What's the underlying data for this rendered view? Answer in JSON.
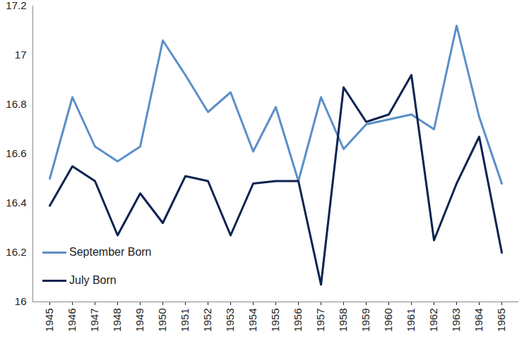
{
  "chart_data": {
    "type": "line",
    "categories": [
      "1945",
      "1946",
      "1947",
      "1948",
      "1949",
      "1950",
      "1951",
      "1952",
      "1953",
      "1954",
      "1955",
      "1956",
      "1957",
      "1958",
      "1959",
      "1960",
      "1961",
      "1962",
      "1963",
      "1964",
      "1965"
    ],
    "series": [
      {
        "name": "September Born",
        "color": "#5b8fc9",
        "values": [
          16.5,
          16.83,
          16.63,
          16.57,
          16.63,
          17.06,
          16.92,
          16.77,
          16.85,
          16.61,
          16.79,
          16.49,
          16.83,
          16.62,
          16.72,
          16.74,
          16.76,
          16.7,
          17.12,
          16.75,
          16.48
        ]
      },
      {
        "name": "July Born",
        "color": "#0d2350",
        "values": [
          16.39,
          16.55,
          16.49,
          16.27,
          16.44,
          16.32,
          16.51,
          16.49,
          16.27,
          16.48,
          16.49,
          16.49,
          16.07,
          16.87,
          16.73,
          16.76,
          16.92,
          16.25,
          16.48,
          16.67,
          16.2
        ]
      }
    ],
    "ylim": [
      16,
      17.2
    ],
    "yticks": [
      16,
      16.2,
      16.4,
      16.6,
      16.8,
      17,
      17.2
    ],
    "grid": false,
    "legend": "bottom-left"
  }
}
